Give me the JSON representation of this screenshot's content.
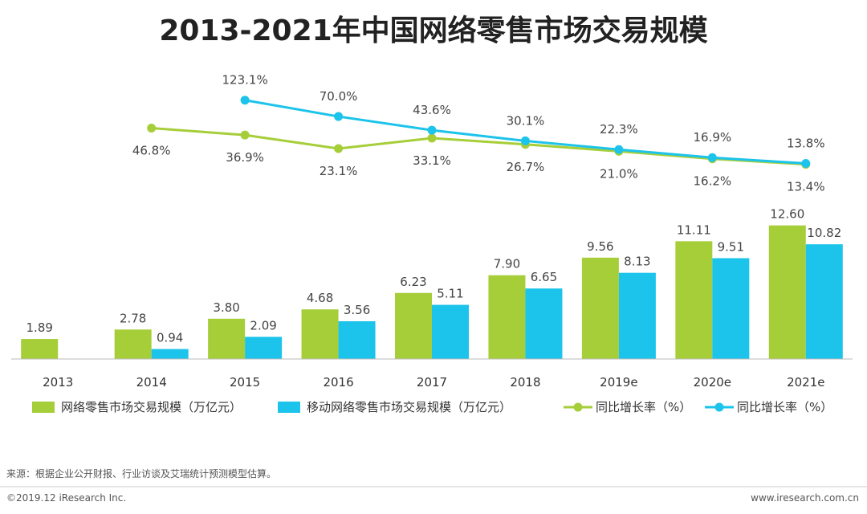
{
  "chart_data": {
    "type": "bar",
    "title": "2013-2021年中国网络零售市场交易规模",
    "categories": [
      "2013",
      "2014",
      "2015",
      "2016",
      "2017",
      "2018",
      "2019e",
      "2020e",
      "2021e"
    ],
    "series": [
      {
        "name": "网络零售市场交易规模（万亿元）",
        "type": "bar",
        "color": "#A6CE39",
        "values": [
          1.89,
          2.78,
          3.8,
          4.68,
          6.23,
          7.9,
          9.56,
          11.11,
          12.6
        ],
        "labels": [
          "1.89",
          "2.78",
          "3.80",
          "4.68",
          "6.23",
          "7.90",
          "9.56",
          "11.11",
          "12.60"
        ]
      },
      {
        "name": "移动网络零售市场交易规模（万亿元）",
        "type": "bar",
        "color": "#1CC3EA",
        "values": [
          null,
          0.94,
          2.09,
          3.56,
          5.11,
          6.65,
          8.13,
          9.51,
          10.82
        ],
        "labels": [
          "",
          "0.94",
          "2.09",
          "3.56",
          "5.11",
          "6.65",
          "8.13",
          "9.51",
          "10.82"
        ]
      },
      {
        "name": "同比增长率（%）",
        "type": "line",
        "color": "#A6CE39",
        "values": [
          null,
          46.8,
          36.9,
          23.1,
          33.1,
          26.7,
          21.0,
          16.2,
          13.4
        ],
        "labels": [
          "",
          "46.8%",
          "36.9%",
          "23.1%",
          "33.1%",
          "26.7%",
          "21.0%",
          "16.2%",
          "13.4%"
        ]
      },
      {
        "name": "同比增长率（%）",
        "type": "line",
        "color": "#1CC3EA",
        "values": [
          null,
          null,
          123.1,
          70.0,
          43.6,
          30.1,
          22.3,
          16.9,
          13.8
        ],
        "labels": [
          "",
          "",
          "123.1%",
          "70.0%",
          "43.6%",
          "30.1%",
          "22.3%",
          "16.9%",
          "13.8%"
        ]
      }
    ],
    "legend_position": "bottom",
    "grid": false
  },
  "source": "来源：根据企业公开财报、行业访谈及艾瑞统计预测模型估算。",
  "footer": {
    "left": "©2019.12 iResearch Inc.",
    "right": "www.iresearch.com.cn"
  }
}
